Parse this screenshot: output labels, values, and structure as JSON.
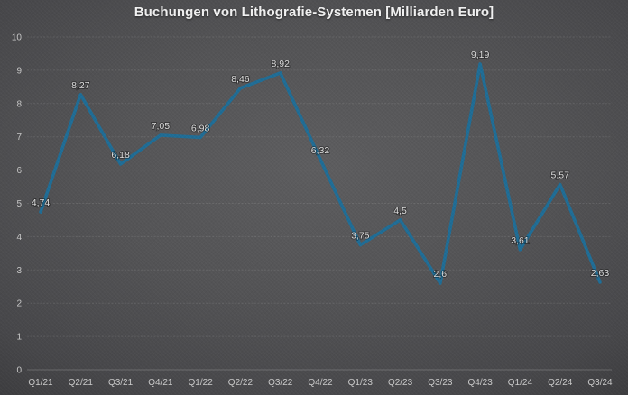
{
  "title": "Buchungen von Lithografie-Systemen [Milliarden Euro]",
  "colors": {
    "line": "#1f6d96",
    "title_text": "#f2f2f2",
    "axis_text": "#c9c9c9",
    "data_label_text": "#dedede",
    "background_center": "#5d5d5f",
    "background_edge": "#2a2a2b",
    "grid": "#b9b9b9"
  },
  "chart_data": {
    "type": "line",
    "title": "Buchungen von Lithografie-Systemen [Milliarden Euro]",
    "categories": [
      "Q1/21",
      "Q2/21",
      "Q3/21",
      "Q4/21",
      "Q1/22",
      "Q2/22",
      "Q3/22",
      "Q4/22",
      "Q1/23",
      "Q2/23",
      "Q3/23",
      "Q4/23",
      "Q1/24",
      "Q2/24",
      "Q3/24"
    ],
    "values": [
      4.74,
      8.27,
      6.18,
      7.05,
      6.98,
      8.46,
      8.92,
      6.32,
      3.75,
      4.5,
      2.6,
      9.19,
      3.61,
      5.57,
      2.63
    ],
    "point_labels": [
      "4,74",
      "8,27",
      "6,18",
      "7,05",
      "6,98",
      "8,46",
      "8,92",
      "6,32",
      "3,75",
      "4,5",
      "2,6",
      "9,19",
      "3,61",
      "5,57",
      "2,63"
    ],
    "xlabel": "",
    "ylabel": "",
    "ylim": [
      0,
      10
    ],
    "yticks": [
      0,
      1,
      2,
      3,
      4,
      5,
      6,
      7,
      8,
      9,
      10
    ],
    "grid": true,
    "legend": "none",
    "decimal_separator": ","
  }
}
